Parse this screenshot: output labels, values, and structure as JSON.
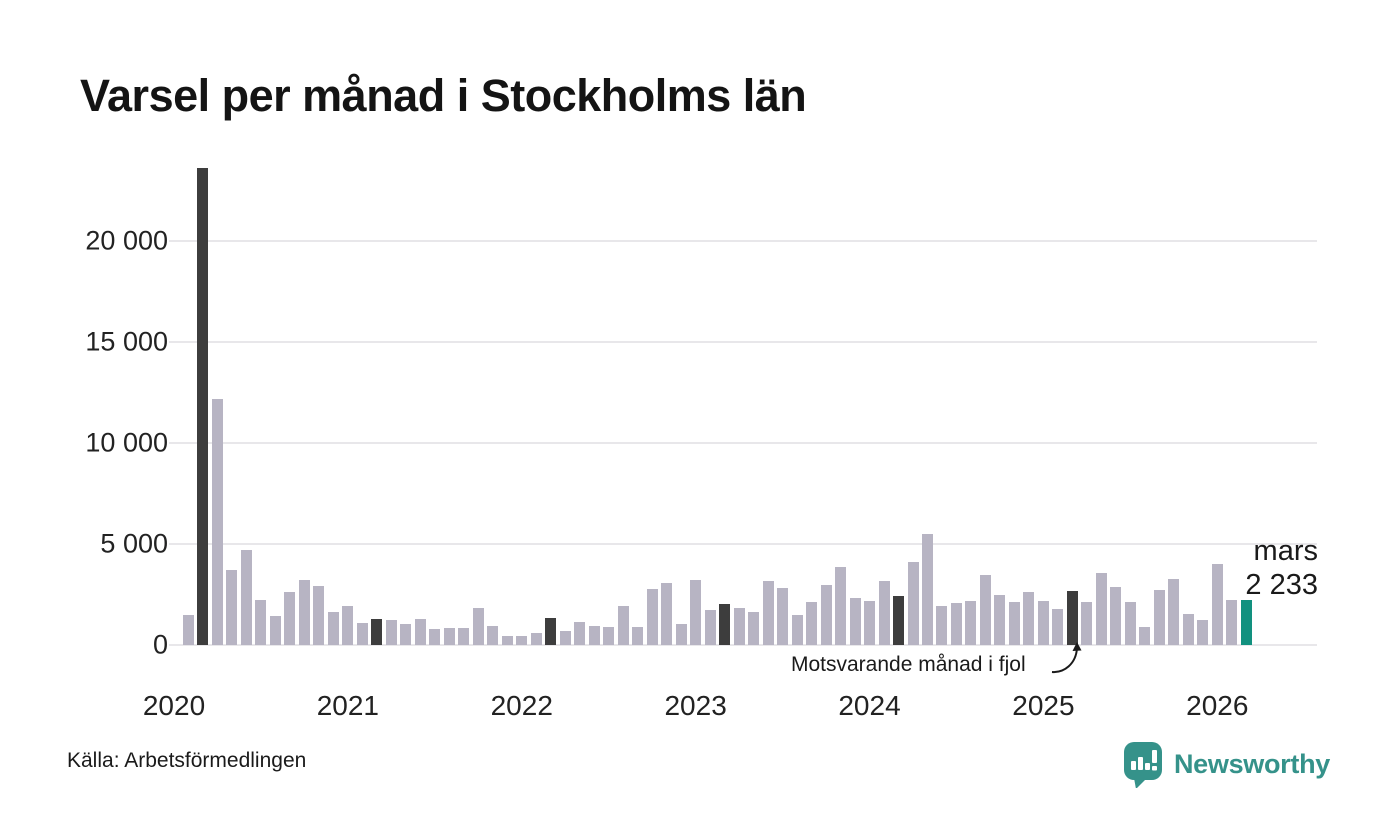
{
  "title": "Varsel per månad i Stockholms län",
  "source": "Källa: Arbetsförmedlingen",
  "brand": {
    "name": "Newsworthy",
    "color": "#35928a"
  },
  "annotation": {
    "text": "Motsvarande månad i fjol",
    "points_to_month": "2025-03"
  },
  "current_label": {
    "line1": "mars",
    "line2": "2 233"
  },
  "colors": {
    "bar_normal": "#b7b4c3",
    "bar_last_year_month": "#3d3d3d",
    "bar_current": "#12917f",
    "gridline": "#e8e7ea",
    "text": "#1a1a1a"
  },
  "chart_data": {
    "type": "bar",
    "title": "Varsel per månad i Stockholms län",
    "xlabel": "",
    "ylabel": "",
    "ylim": [
      0,
      24500
    ],
    "grid": true,
    "yticks": [
      {
        "value": 0,
        "label": "0"
      },
      {
        "value": 5000,
        "label": "5 000"
      },
      {
        "value": 10000,
        "label": "10 000"
      },
      {
        "value": 15000,
        "label": "15 000"
      },
      {
        "value": 20000,
        "label": "20 000"
      }
    ],
    "year_ticks": [
      "2020",
      "2021",
      "2022",
      "2023",
      "2024",
      "2025",
      "2026"
    ],
    "legend_note": "dark bars = same month in previous years (March), teal bar = current month (March 2026)",
    "current_point": {
      "month": "2026-03",
      "label": "mars",
      "value": 2233,
      "value_label": "2 233"
    },
    "points": [
      {
        "month": "2020-02",
        "value": 1500,
        "kind": "normal"
      },
      {
        "month": "2020-03",
        "value": 23600,
        "kind": "last-year-month"
      },
      {
        "month": "2020-04",
        "value": 12200,
        "kind": "normal"
      },
      {
        "month": "2020-05",
        "value": 3700,
        "kind": "normal"
      },
      {
        "month": "2020-06",
        "value": 4700,
        "kind": "normal"
      },
      {
        "month": "2020-07",
        "value": 2250,
        "kind": "normal"
      },
      {
        "month": "2020-08",
        "value": 1450,
        "kind": "normal"
      },
      {
        "month": "2020-09",
        "value": 2600,
        "kind": "normal"
      },
      {
        "month": "2020-10",
        "value": 3200,
        "kind": "normal"
      },
      {
        "month": "2020-11",
        "value": 2900,
        "kind": "normal"
      },
      {
        "month": "2020-12",
        "value": 1650,
        "kind": "normal"
      },
      {
        "month": "2021-01",
        "value": 1950,
        "kind": "normal"
      },
      {
        "month": "2021-02",
        "value": 1100,
        "kind": "normal"
      },
      {
        "month": "2021-03",
        "value": 1300,
        "kind": "last-year-month"
      },
      {
        "month": "2021-04",
        "value": 1250,
        "kind": "normal"
      },
      {
        "month": "2021-05",
        "value": 1050,
        "kind": "normal"
      },
      {
        "month": "2021-06",
        "value": 1300,
        "kind": "normal"
      },
      {
        "month": "2021-07",
        "value": 800,
        "kind": "normal"
      },
      {
        "month": "2021-08",
        "value": 850,
        "kind": "normal"
      },
      {
        "month": "2021-09",
        "value": 850,
        "kind": "normal"
      },
      {
        "month": "2021-10",
        "value": 1850,
        "kind": "normal"
      },
      {
        "month": "2021-11",
        "value": 950,
        "kind": "normal"
      },
      {
        "month": "2021-12",
        "value": 450,
        "kind": "normal"
      },
      {
        "month": "2022-01",
        "value": 450,
        "kind": "normal"
      },
      {
        "month": "2022-02",
        "value": 600,
        "kind": "normal"
      },
      {
        "month": "2022-03",
        "value": 1350,
        "kind": "last-year-month"
      },
      {
        "month": "2022-04",
        "value": 700,
        "kind": "normal"
      },
      {
        "month": "2022-05",
        "value": 1150,
        "kind": "normal"
      },
      {
        "month": "2022-06",
        "value": 950,
        "kind": "normal"
      },
      {
        "month": "2022-07",
        "value": 900,
        "kind": "normal"
      },
      {
        "month": "2022-08",
        "value": 1950,
        "kind": "normal"
      },
      {
        "month": "2022-09",
        "value": 900,
        "kind": "normal"
      },
      {
        "month": "2022-10",
        "value": 2750,
        "kind": "normal"
      },
      {
        "month": "2022-11",
        "value": 3050,
        "kind": "normal"
      },
      {
        "month": "2022-12",
        "value": 1050,
        "kind": "normal"
      },
      {
        "month": "2023-01",
        "value": 3200,
        "kind": "normal"
      },
      {
        "month": "2023-02",
        "value": 1750,
        "kind": "normal"
      },
      {
        "month": "2023-03",
        "value": 2050,
        "kind": "last-year-month"
      },
      {
        "month": "2023-04",
        "value": 1850,
        "kind": "normal"
      },
      {
        "month": "2023-05",
        "value": 1650,
        "kind": "normal"
      },
      {
        "month": "2023-06",
        "value": 3150,
        "kind": "normal"
      },
      {
        "month": "2023-07",
        "value": 2800,
        "kind": "normal"
      },
      {
        "month": "2023-08",
        "value": 1500,
        "kind": "normal"
      },
      {
        "month": "2023-09",
        "value": 2150,
        "kind": "normal"
      },
      {
        "month": "2023-10",
        "value": 2950,
        "kind": "normal"
      },
      {
        "month": "2023-11",
        "value": 3850,
        "kind": "normal"
      },
      {
        "month": "2023-12",
        "value": 2350,
        "kind": "normal"
      },
      {
        "month": "2024-01",
        "value": 2200,
        "kind": "normal"
      },
      {
        "month": "2024-02",
        "value": 3150,
        "kind": "normal"
      },
      {
        "month": "2024-03",
        "value": 2450,
        "kind": "last-year-month"
      },
      {
        "month": "2024-04",
        "value": 4100,
        "kind": "normal"
      },
      {
        "month": "2024-05",
        "value": 5500,
        "kind": "normal"
      },
      {
        "month": "2024-06",
        "value": 1950,
        "kind": "normal"
      },
      {
        "month": "2024-07",
        "value": 2100,
        "kind": "normal"
      },
      {
        "month": "2024-08",
        "value": 2200,
        "kind": "normal"
      },
      {
        "month": "2024-09",
        "value": 3450,
        "kind": "normal"
      },
      {
        "month": "2024-10",
        "value": 2500,
        "kind": "normal"
      },
      {
        "month": "2024-11",
        "value": 2150,
        "kind": "normal"
      },
      {
        "month": "2024-12",
        "value": 2600,
        "kind": "normal"
      },
      {
        "month": "2025-01",
        "value": 2200,
        "kind": "normal"
      },
      {
        "month": "2025-02",
        "value": 1800,
        "kind": "normal"
      },
      {
        "month": "2025-03",
        "value": 2650,
        "kind": "last-year-month"
      },
      {
        "month": "2025-04",
        "value": 2150,
        "kind": "normal"
      },
      {
        "month": "2025-05",
        "value": 3550,
        "kind": "normal"
      },
      {
        "month": "2025-06",
        "value": 2850,
        "kind": "normal"
      },
      {
        "month": "2025-07",
        "value": 2150,
        "kind": "normal"
      },
      {
        "month": "2025-08",
        "value": 900,
        "kind": "normal"
      },
      {
        "month": "2025-09",
        "value": 2700,
        "kind": "normal"
      },
      {
        "month": "2025-10",
        "value": 3250,
        "kind": "normal"
      },
      {
        "month": "2025-11",
        "value": 1550,
        "kind": "normal"
      },
      {
        "month": "2025-12",
        "value": 1250,
        "kind": "normal"
      },
      {
        "month": "2026-01",
        "value": 4000,
        "kind": "normal"
      },
      {
        "month": "2026-02",
        "value": 2250,
        "kind": "normal"
      },
      {
        "month": "2026-03",
        "value": 2233,
        "kind": "current"
      }
    ]
  }
}
